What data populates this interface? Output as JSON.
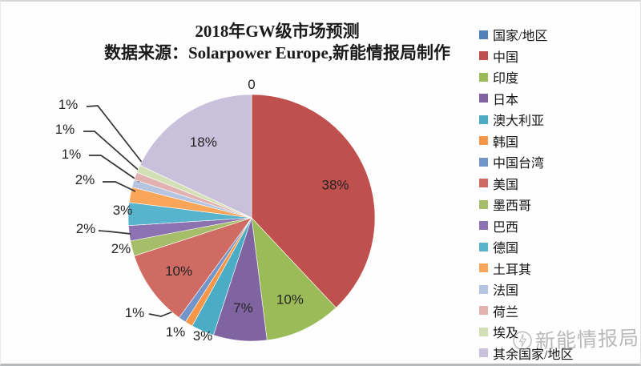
{
  "title": {
    "line1": "2018年GW级市场预测",
    "line2": "数据来源：Solarpower Europe,新能情报局制作"
  },
  "chart_data": {
    "type": "pie",
    "title": "2018年GW级市场预测",
    "subtitle": "数据来源：Solarpower Europe,新能情报局制作",
    "legend_position": "right",
    "start_angle": "top",
    "direction": "clockwise",
    "value_unit": "percent",
    "slices": [
      {
        "label": "国家/地区",
        "value": 0,
        "data_label": "0",
        "color": "#4F81BD"
      },
      {
        "label": "中国",
        "value": 38,
        "data_label": "38%",
        "color": "#C0504D"
      },
      {
        "label": "印度",
        "value": 10,
        "data_label": "10%",
        "color": "#9BBB59"
      },
      {
        "label": "日本",
        "value": 7,
        "data_label": "7%",
        "color": "#8064A2"
      },
      {
        "label": "澳大利亚",
        "value": 3,
        "data_label": "3%",
        "color": "#4BACC6"
      },
      {
        "label": "韩国",
        "value": 1,
        "data_label": "1%",
        "color": "#F79646"
      },
      {
        "label": "中国台湾",
        "value": 1,
        "data_label": "1%",
        "color": "#7396CA"
      },
      {
        "label": "美国",
        "value": 10,
        "data_label": "10%",
        "color": "#CF6B62"
      },
      {
        "label": "墨西哥",
        "value": 2,
        "data_label": "2%",
        "color": "#A6BE6A"
      },
      {
        "label": "巴西",
        "value": 2,
        "data_label": "2%",
        "color": "#8C72B0"
      },
      {
        "label": "德国",
        "value": 3,
        "data_label": "3%",
        "color": "#58B4CD"
      },
      {
        "label": "土耳其",
        "value": 2,
        "data_label": "2%",
        "color": "#F9A65B"
      },
      {
        "label": "法国",
        "value": 1,
        "data_label": "1%",
        "color": "#B5C4E1"
      },
      {
        "label": "荷兰",
        "value": 1,
        "data_label": "1%",
        "color": "#E2B2B0"
      },
      {
        "label": "埃及",
        "value": 1,
        "data_label": "1%",
        "color": "#D3E0B5"
      },
      {
        "label": "其余国家/地区",
        "value": 18,
        "data_label": "18%",
        "color": "#C9C0DC"
      }
    ]
  },
  "watermark": {
    "text": "新能情报局"
  }
}
